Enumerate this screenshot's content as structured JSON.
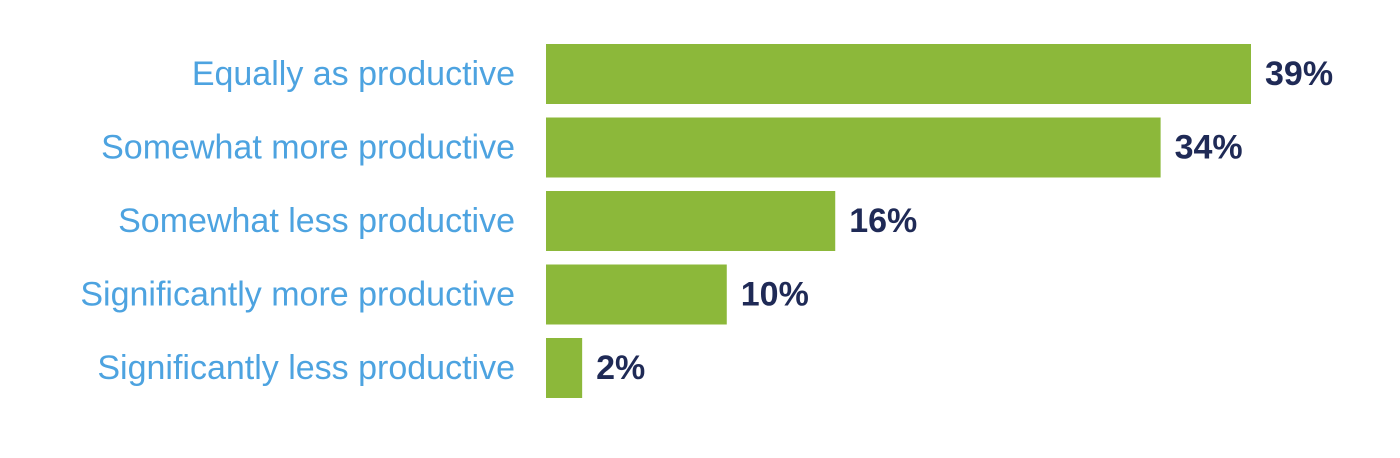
{
  "chart_data": {
    "type": "bar",
    "orientation": "horizontal",
    "categories": [
      "Equally as productive",
      "Somewhat more productive",
      "Somewhat less productive",
      "Significantly more productive",
      "Significantly less productive"
    ],
    "values": [
      39,
      34,
      16,
      10,
      2
    ],
    "value_labels": [
      "39%",
      "34%",
      "16%",
      "10%",
      "2%"
    ],
    "unit": "%",
    "xlim": [
      0,
      39
    ],
    "grid": false,
    "legend": "none",
    "colors": {
      "bar": "#8cb83a",
      "category_text": "#4da3e0",
      "value_text": "#1f2a56"
    }
  }
}
